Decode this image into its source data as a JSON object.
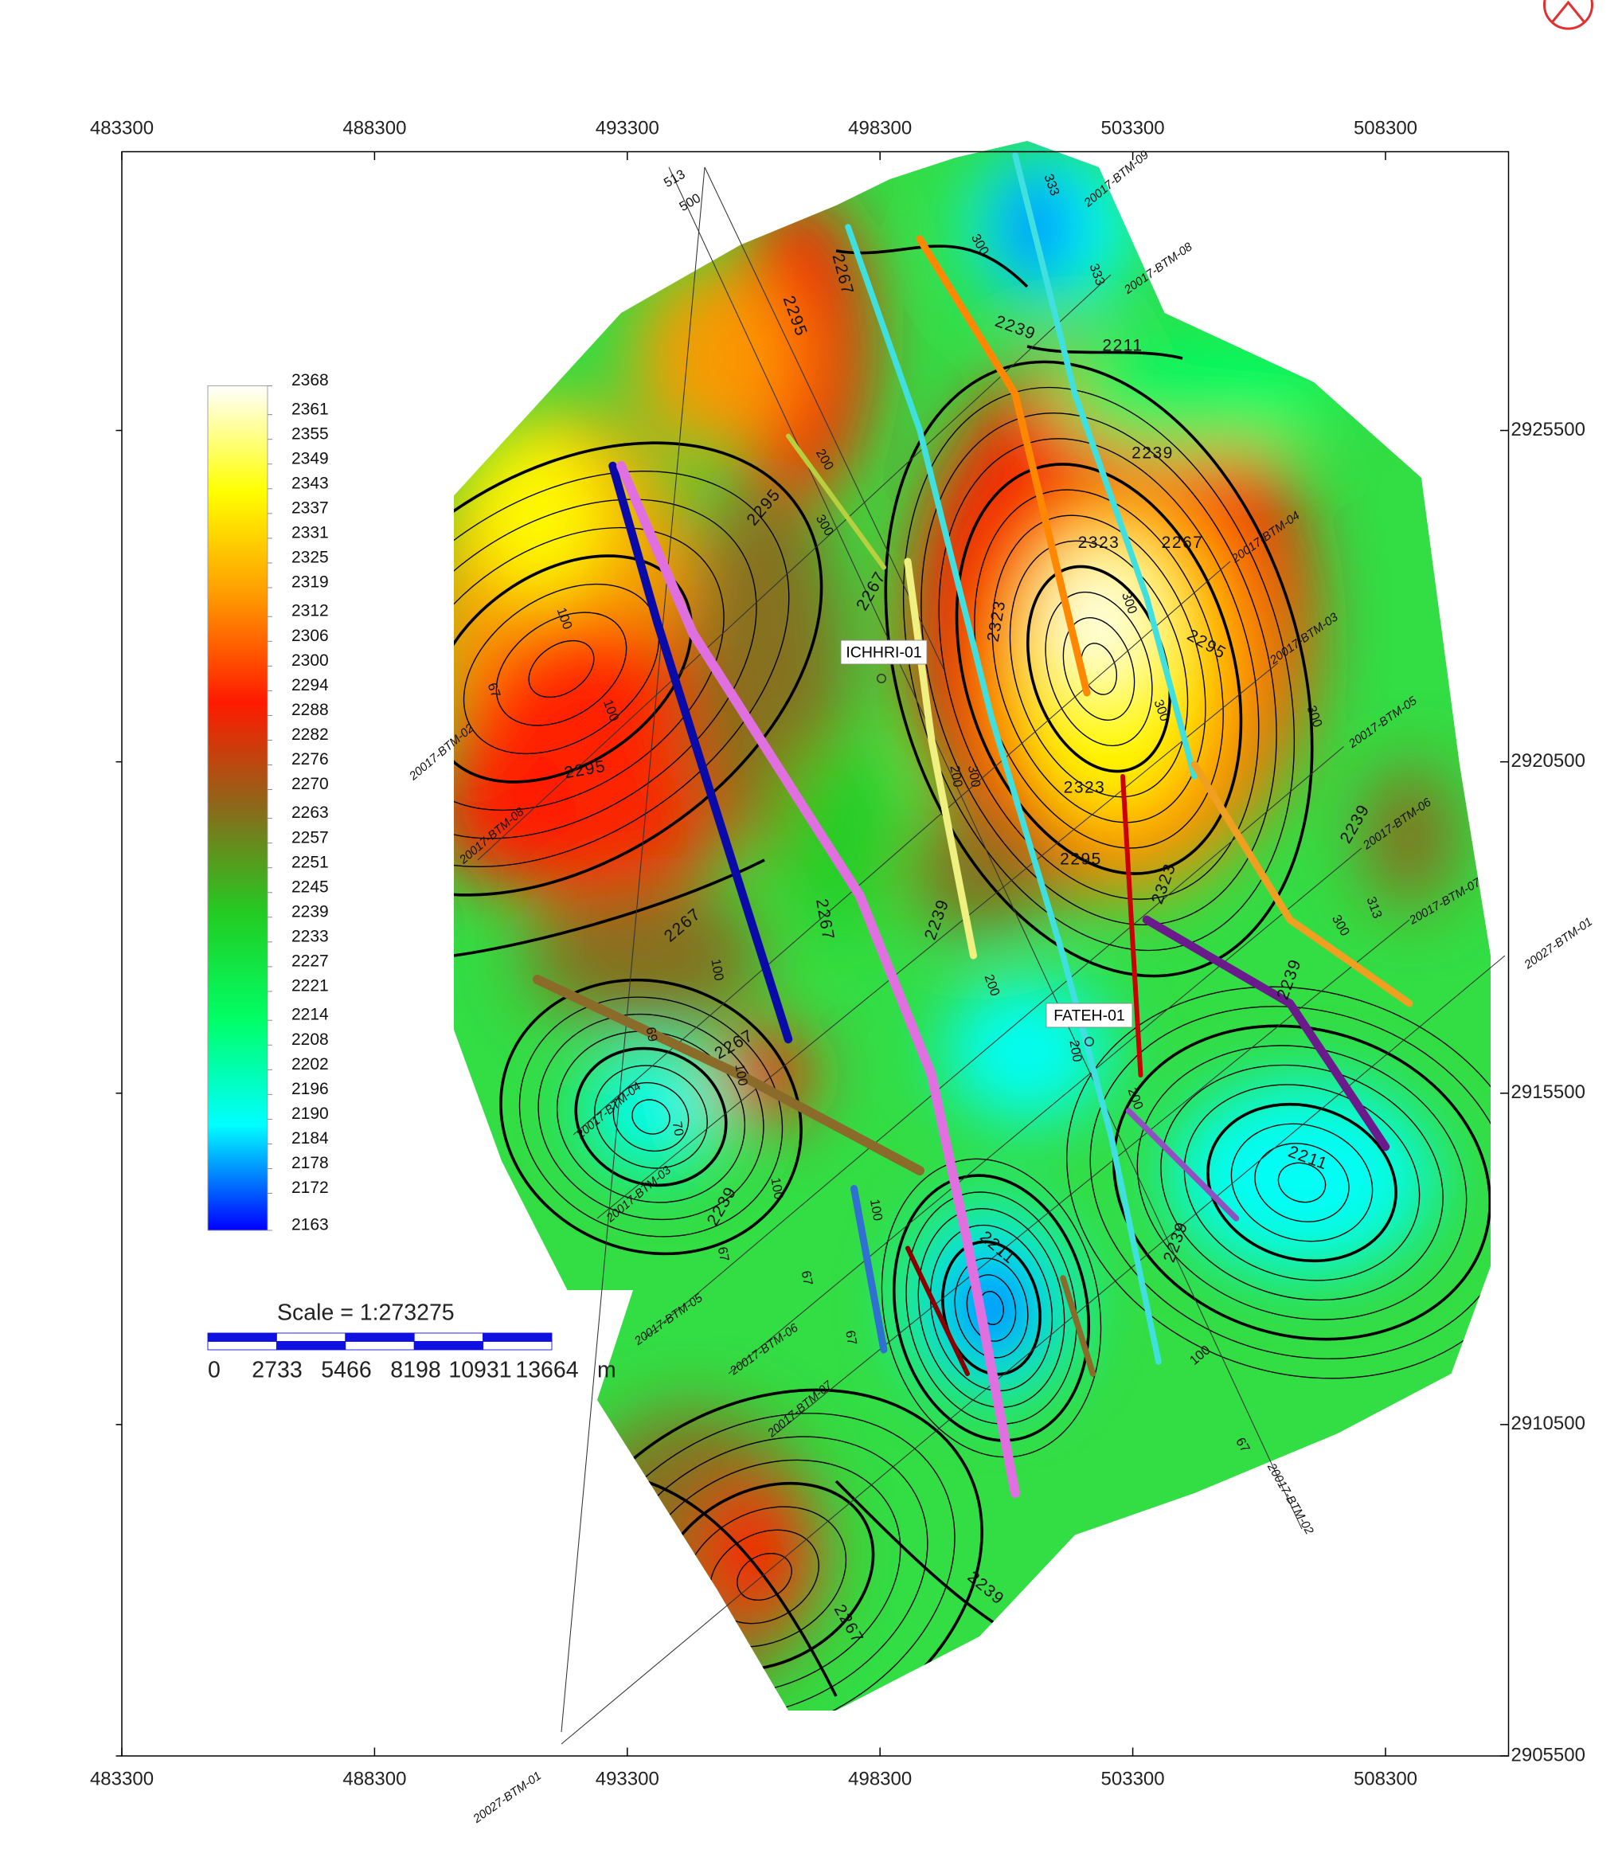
{
  "map": {
    "x_axis": {
      "lim": [
        483300,
        510734
      ],
      "ticks": [
        483300,
        488300,
        493300,
        498300,
        503300,
        508300
      ]
    },
    "y_axis": {
      "lim": [
        2905500,
        2929706
      ],
      "ticks": [
        2925500,
        2920500,
        2915500,
        2910500,
        2905500
      ]
    },
    "colorbar": {
      "levels": [
        2368,
        2361,
        2355,
        2349,
        2343,
        2337,
        2331,
        2325,
        2319,
        2312,
        2306,
        2300,
        2294,
        2288,
        2282,
        2276,
        2270,
        2263,
        2257,
        2251,
        2245,
        2239,
        2233,
        2227,
        2221,
        2214,
        2208,
        2202,
        2196,
        2190,
        2184,
        2178,
        2172,
        2163
      ],
      "colors": [
        "#0000ff",
        "#00ffff",
        "#00ff66",
        "#22cc22",
        "#8a6a1a",
        "#ff1a00",
        "#ff9900",
        "#ffff00",
        "#ffffff"
      ]
    },
    "scale": {
      "title": "Scale = 1:273275",
      "labels": [
        0,
        2733,
        5466,
        8198,
        10931,
        13664
      ],
      "unit": "m"
    },
    "wells": [
      {
        "name": "ICHHRI-01"
      },
      {
        "name": "FATEH-01"
      }
    ],
    "seismic_lines": [
      "20017-BTM-09",
      "20017-BTM-08",
      "20017-BTM-04",
      "20017-BTM-03",
      "20017-BTM-05",
      "20017-BTM-06",
      "20017-BTM-07",
      "20027-BTM-01",
      "20017-BTM-02",
      "20027-BTM-01",
      "20017-BTM-02",
      "20017-BTM-08",
      "20017-BTM-04",
      "20017-BTM-03",
      "20017-BTM-05",
      "20017-BTM-06",
      "20017-BTM-07"
    ],
    "contour_labels": [
      2295,
      2267,
      2295,
      2267,
      2295,
      2267,
      2267,
      2267,
      2239,
      2239,
      2211,
      2211,
      2239,
      2239,
      2323,
      2267,
      2323,
      2323,
      2295,
      2323,
      2239,
      2211,
      2239,
      2239,
      2267,
      2295,
      2239
    ],
    "shotpoint_labels": [
      513,
      500,
      333,
      333,
      300,
      100,
      67,
      100,
      200,
      300,
      300,
      300,
      200,
      300,
      100,
      100,
      69,
      70,
      100,
      67,
      100,
      67,
      67,
      200,
      200,
      100,
      67,
      300,
      313,
      300,
      200
    ]
  }
}
